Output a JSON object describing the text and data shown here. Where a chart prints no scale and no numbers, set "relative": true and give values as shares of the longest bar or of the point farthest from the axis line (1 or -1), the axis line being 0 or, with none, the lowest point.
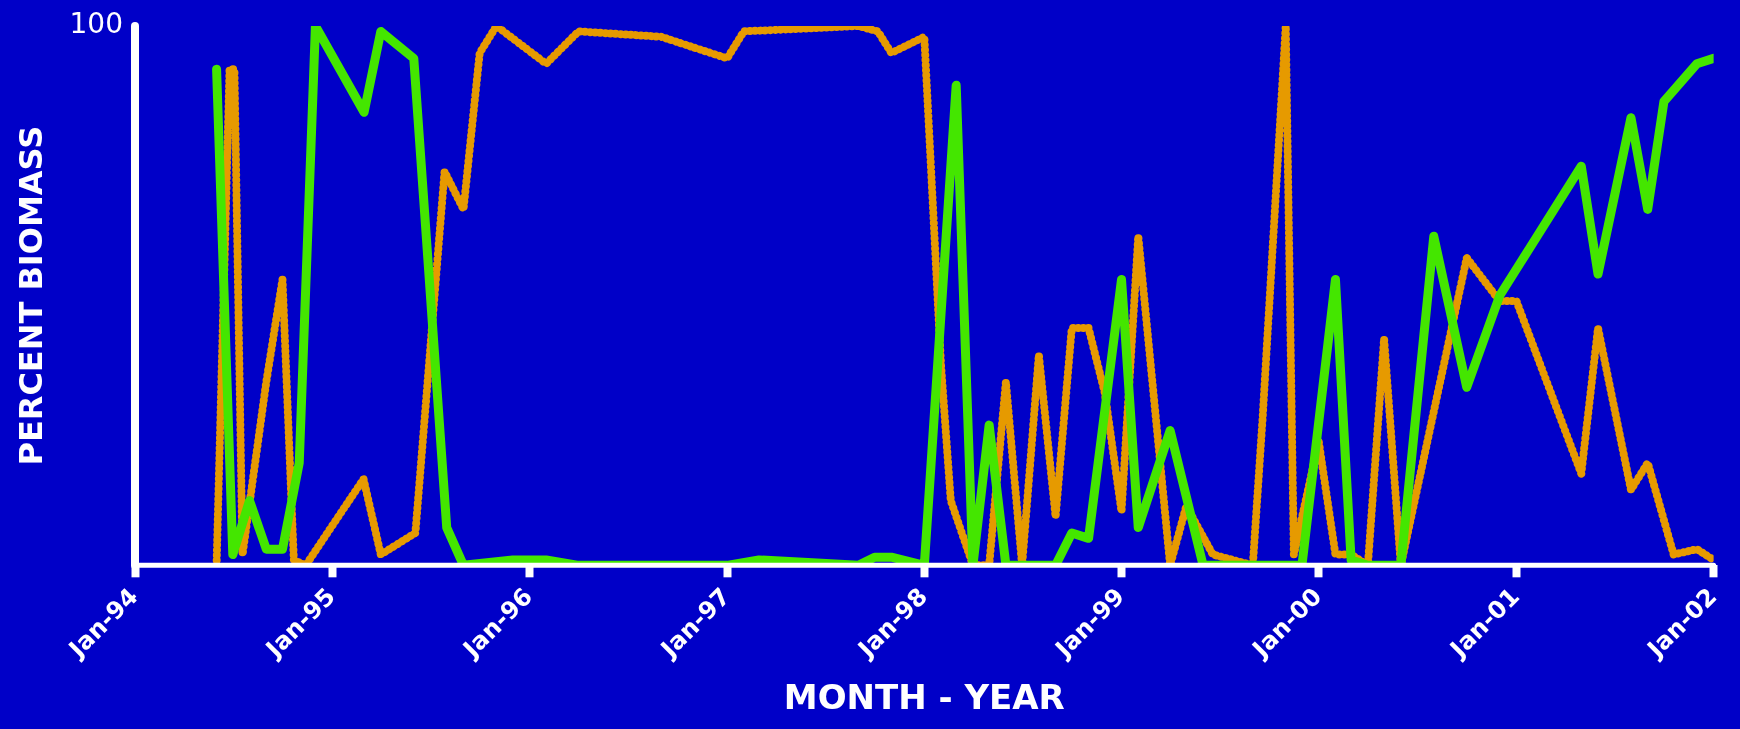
{
  "chart_data": {
    "type": "line",
    "xlabel": "MONTH - YEAR",
    "ylabel": "PERCENT BIOMASS",
    "xlim": [
      "1994-01",
      "2002-01"
    ],
    "xticks": [
      {
        "value": "1994-01",
        "label": "Jan-94"
      },
      {
        "value": "1995-01",
        "label": "Jan-95"
      },
      {
        "value": "1996-01",
        "label": "Jan-96"
      },
      {
        "value": "1997-01",
        "label": "Jan-97"
      },
      {
        "value": "1998-01",
        "label": "Jan-98"
      },
      {
        "value": "1999-01",
        "label": "Jan-99"
      },
      {
        "value": "2000-01",
        "label": "Jan-00"
      },
      {
        "value": "2001-01",
        "label": "Jan-01"
      },
      {
        "value": "2002-01",
        "label": "Jan-02"
      }
    ],
    "relative": true,
    "annotations": [
      "100"
    ],
    "grid": false,
    "legend": false,
    "marker": "none",
    "series": [
      {
        "color": "#44e600",
        "line_style": "solid",
        "x": [
          "1994-06",
          "1994-07",
          "1994-08",
          "1994-09",
          "1994-10",
          "1994-11",
          "1994-12",
          "1995-03",
          "1995-04",
          "1995-06",
          "1995-08",
          "1995-09",
          "1995-12",
          "1996-02",
          "1996-04",
          "1997-01",
          "1997-03",
          "1997-09",
          "1997-10",
          "1997-11",
          "1998-01",
          "1998-03",
          "1998-04",
          "1998-05",
          "1998-06",
          "1998-09",
          "1998-10",
          "1998-11",
          "1999-01",
          "1999-02",
          "1999-04",
          "1999-06",
          "1999-12",
          "2000-02",
          "2000-03",
          "2000-04",
          "2000-06",
          "2000-08",
          "2000-10",
          "2000-12",
          "2001-05",
          "2001-06",
          "2001-08",
          "2001-09",
          "2001-10",
          "2001-12",
          "2002-01"
        ],
        "values": [
          0.92,
          0.02,
          0.12,
          0.03,
          0.03,
          0.19,
          1,
          0.84,
          0.99,
          0.94,
          0.07,
          0,
          0.01,
          0.01,
          0,
          0,
          0.01,
          0,
          0.015,
          0.015,
          0,
          0.89,
          0,
          0.26,
          0,
          0,
          0.06,
          0.05,
          0.53,
          0.07,
          0.25,
          0,
          0,
          0.53,
          0.01,
          0,
          0,
          0.61,
          0.33,
          0.5,
          0.74,
          0.54,
          0.83,
          0.66,
          0.86,
          0.93,
          0.94
        ]
      },
      {
        "color": "#e69a00",
        "line_style": "dotted",
        "x": [
          "1994-06-01",
          "1994-06-25",
          "1994-07-04",
          "1994-07-19",
          "1994-09-01",
          "1994-10-01",
          "1994-10-22",
          "1994-11-13",
          "1995-02-28",
          "1995-04-01",
          "1995-06-04",
          "1995-07-28",
          "1995-09-01",
          "1995-10-01",
          "1995-11-01",
          "1996-02-01",
          "1996-04-01",
          "1996-09-01",
          "1997-01-01",
          "1997-02-01",
          "1997-09-01",
          "1997-10-07",
          "1997-11-01",
          "1998-01-01",
          "1998-02-01",
          "1998-02-19",
          "1998-04-01",
          "1998-05-01",
          "1998-06-01",
          "1998-07-01",
          "1998-08-01",
          "1998-09-01",
          "1998-10-01",
          "1998-11-01",
          "1998-12-01",
          "1999-01-01",
          "1999-02-01",
          "1999-04-01",
          "1999-05-01",
          "1999-06-19",
          "1999-09-01",
          "1999-09-19",
          "1999-11-01",
          "1999-11-16",
          "2000-01-01",
          "2000-02-01",
          "2000-03-01",
          "2000-04-01",
          "2000-05-01",
          "2000-06-01",
          "2000-10-01",
          "2000-12-01",
          "2001-01-01",
          "2001-05-01",
          "2001-06-01",
          "2001-08-01",
          "2001-09-01",
          "2001-10-19",
          "2001-12-01",
          "2002-01-01"
        ],
        "values": [
          0,
          0.92,
          0.92,
          0.02,
          0.34,
          0.53,
          0.01,
          0,
          0.16,
          0.02,
          0.06,
          0.73,
          0.66,
          0.95,
          1,
          0.93,
          0.99,
          0.98,
          0.94,
          0.99,
          1,
          0.99,
          0.95,
          0.98,
          0.37,
          0.12,
          0,
          0,
          0.34,
          0,
          0.39,
          0.09,
          0.44,
          0.44,
          0.32,
          0.1,
          0.61,
          0,
          0.11,
          0.02,
          0,
          0.27,
          1,
          0.02,
          0.23,
          0.02,
          0.02,
          0,
          0.42,
          0,
          0.57,
          0.49,
          0.49,
          0.17,
          0.44,
          0.14,
          0.19,
          0.02,
          0.03,
          0.01
        ]
      }
    ]
  }
}
